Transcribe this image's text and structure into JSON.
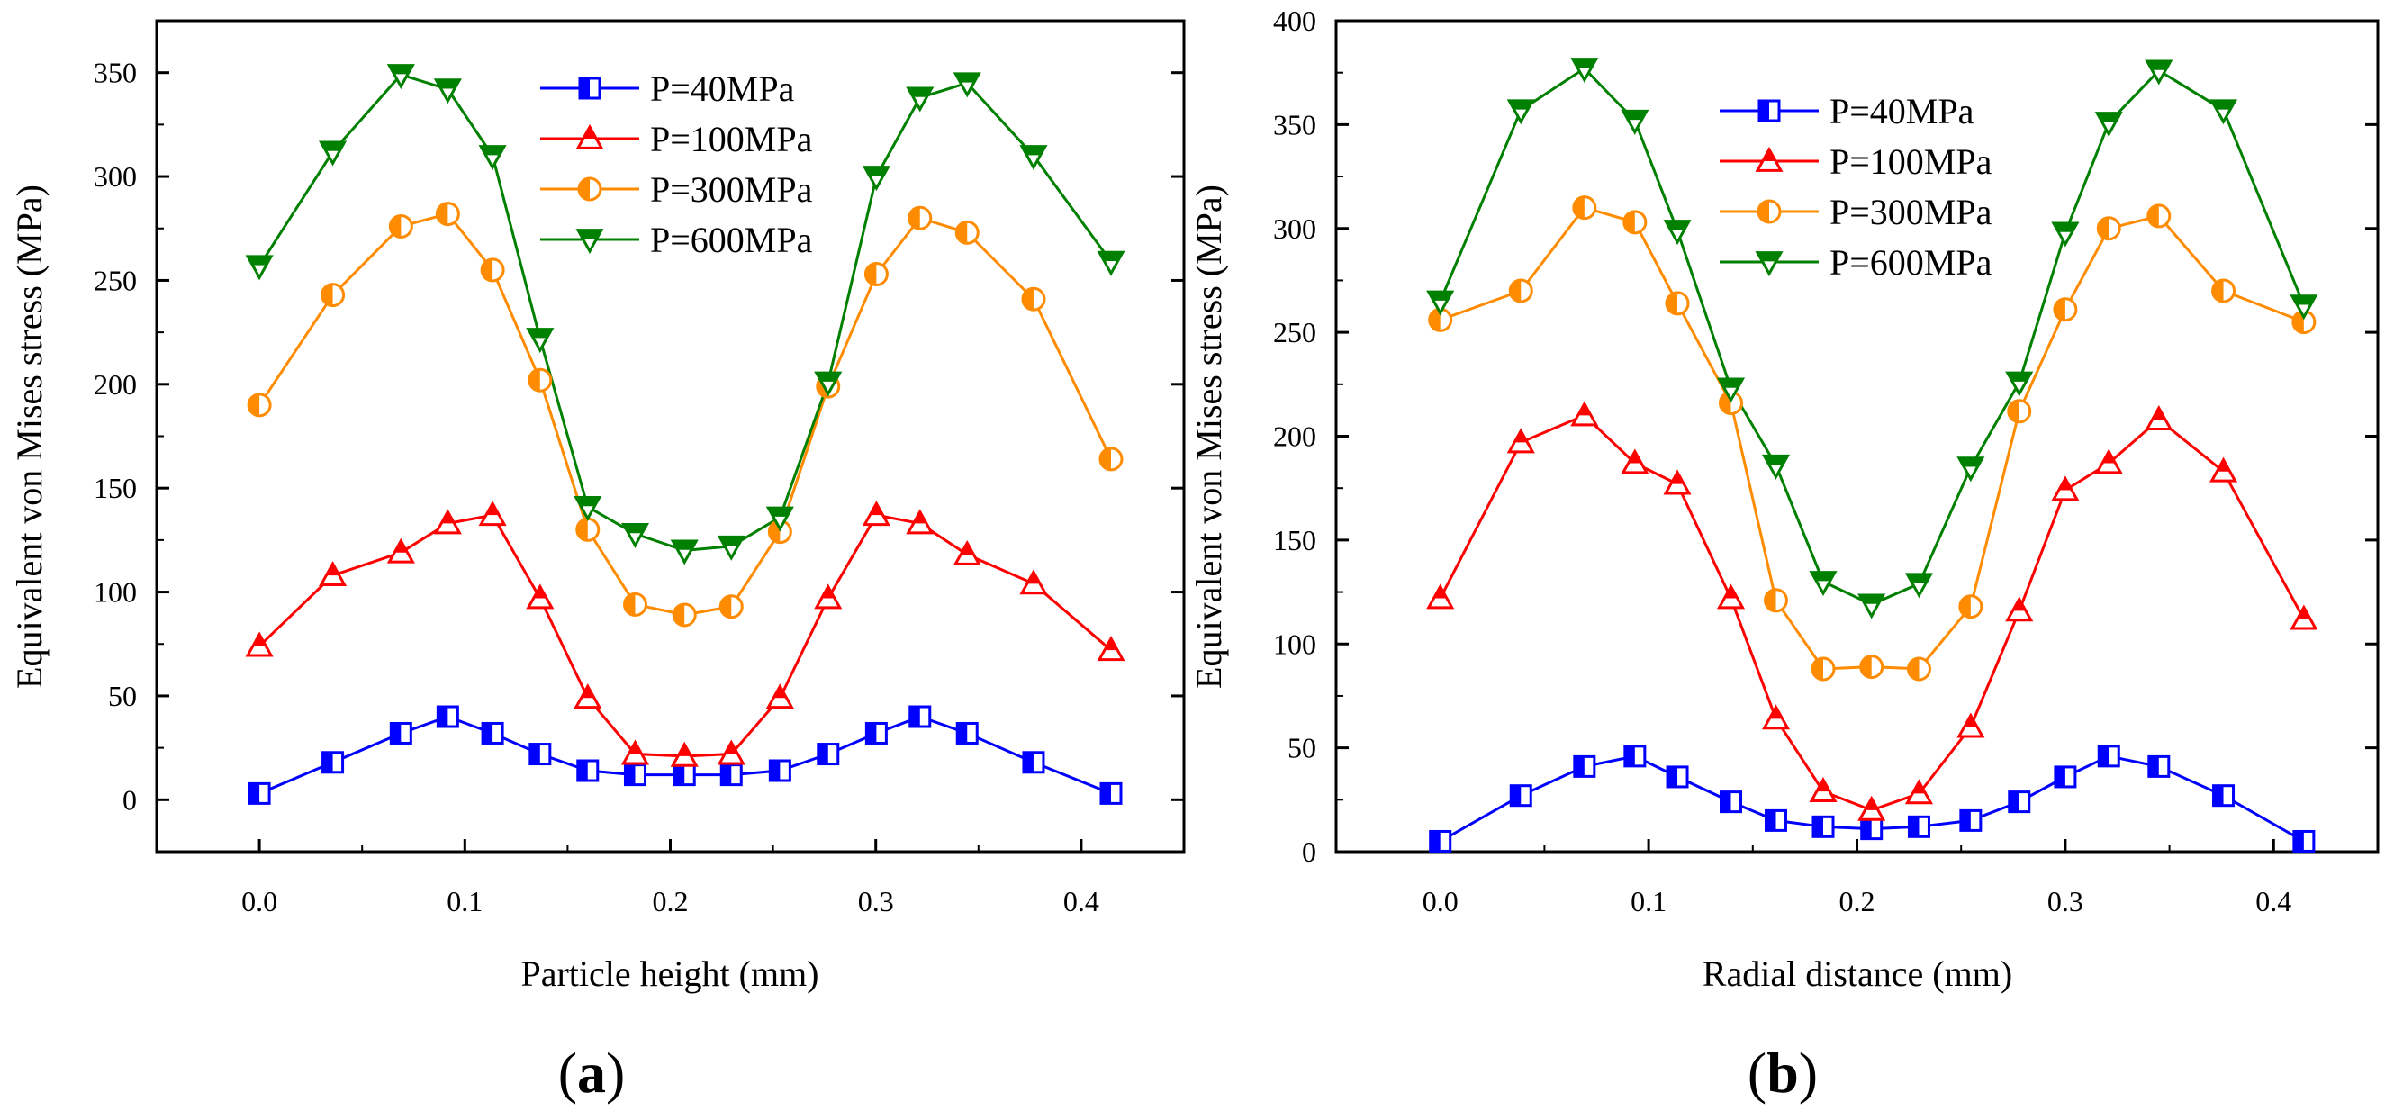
{
  "figure": {
    "panels": [
      "(a)",
      "(b)"
    ]
  },
  "chart_data": [
    {
      "type": "line",
      "panel_label": "(a)",
      "xlabel": "Particle height (mm)",
      "ylabel": "Equivalent von Mises stress (MPa)",
      "xlim": [
        -0.05,
        0.45
      ],
      "ylim": [
        -25,
        375
      ],
      "xticks": [
        0.0,
        0.1,
        0.2,
        0.3,
        0.4
      ],
      "xtick_labels": [
        "0.0",
        "0.1",
        "0.2",
        "0.3",
        "0.4"
      ],
      "yticks": [
        0,
        50,
        100,
        150,
        200,
        250,
        300,
        350
      ],
      "ytick_labels": [
        "0",
        "50",
        "100",
        "150",
        "200",
        "250",
        "300",
        "350"
      ],
      "legend_position": "top-center",
      "x": [
        0.0,
        0.0357,
        0.0689,
        0.0917,
        0.1135,
        0.1366,
        0.1598,
        0.1829,
        0.2069,
        0.2297,
        0.2534,
        0.2768,
        0.3003,
        0.3215,
        0.3445,
        0.3768,
        0.4145
      ],
      "series": [
        {
          "name": "P=40MPa",
          "color": "#0000ff",
          "marker": "square",
          "values": [
            3,
            18,
            32,
            40,
            32,
            22,
            14,
            12,
            12,
            12,
            14,
            22,
            32,
            40,
            32,
            18,
            3
          ]
        },
        {
          "name": "P=100MPa",
          "color": "#ff0000",
          "marker": "triangle-up",
          "values": [
            74,
            108,
            119,
            133,
            137,
            97,
            49,
            22,
            21,
            22,
            49,
            97,
            137,
            133,
            118,
            104,
            72
          ]
        },
        {
          "name": "P=300MPa",
          "color": "#ff8c00",
          "marker": "circle",
          "values": [
            190,
            243,
            276,
            282,
            255,
            202,
            130,
            94,
            89,
            93,
            129,
            199,
            253,
            280,
            273,
            241,
            164
          ]
        },
        {
          "name": "P=600MPa",
          "color": "#008000",
          "marker": "triangle-down",
          "values": [
            257,
            312,
            349,
            342,
            310,
            222,
            141,
            128,
            120,
            122,
            136,
            201,
            300,
            338,
            345,
            310,
            259
          ]
        }
      ]
    },
    {
      "type": "line",
      "panel_label": "(b)",
      "xlabel": "Radial distance (mm)",
      "ylabel": "Equivalent von Mises stress (MPa)",
      "xlim": [
        -0.05,
        0.45
      ],
      "ylim": [
        0,
        400
      ],
      "xticks": [
        0.0,
        0.1,
        0.2,
        0.3,
        0.4
      ],
      "xtick_labels": [
        "0.0",
        "0.1",
        "0.2",
        "0.3",
        "0.4"
      ],
      "yticks": [
        0,
        50,
        100,
        150,
        200,
        250,
        300,
        350,
        400
      ],
      "ytick_labels": [
        "0",
        "50",
        "100",
        "150",
        "200",
        "250",
        "300",
        "350",
        "400"
      ],
      "legend_position": "top-center",
      "x": [
        0.0,
        0.0387,
        0.0692,
        0.0934,
        0.1138,
        0.1395,
        0.1611,
        0.1838,
        0.207,
        0.2298,
        0.2546,
        0.2779,
        0.3,
        0.3209,
        0.3449,
        0.3759,
        0.4145
      ],
      "series": [
        {
          "name": "P=40MPa",
          "color": "#0000ff",
          "marker": "square",
          "values": [
            5,
            27,
            41,
            46,
            36,
            24,
            15,
            12,
            11,
            12,
            15,
            24,
            36,
            46,
            41,
            27,
            5
          ]
        },
        {
          "name": "P=100MPa",
          "color": "#ff0000",
          "marker": "triangle-up",
          "values": [
            122,
            197,
            210,
            187,
            177,
            122,
            64,
            29,
            20,
            28,
            60,
            116,
            174,
            187,
            208,
            183,
            112
          ]
        },
        {
          "name": "P=300MPa",
          "color": "#ff8c00",
          "marker": "circle",
          "values": [
            256,
            270,
            310,
            303,
            264,
            216,
            121,
            88,
            89,
            88,
            118,
            212,
            261,
            300,
            306,
            270,
            255
          ]
        },
        {
          "name": "P=600MPa",
          "color": "#008000",
          "marker": "triangle-down",
          "values": [
            265,
            357,
            377,
            352,
            299,
            223,
            186,
            130,
            119,
            129,
            185,
            226,
            298,
            351,
            376,
            357,
            263
          ]
        }
      ]
    }
  ]
}
